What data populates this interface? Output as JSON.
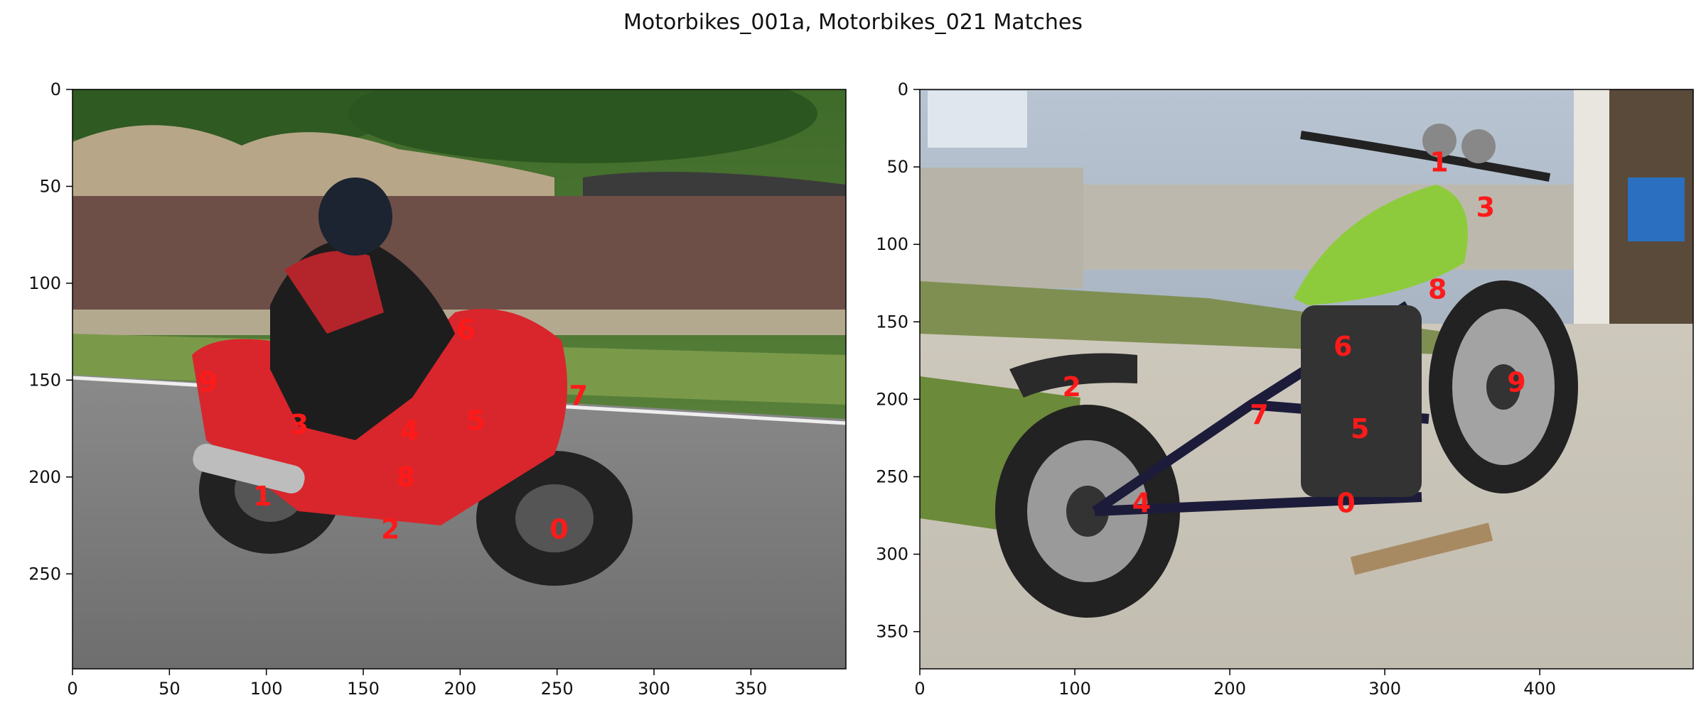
{
  "title": "Motorbikes_001a, Motorbikes_021 Matches",
  "chart_data": [
    {
      "type": "scatter",
      "image_name": "Motorbikes_001a",
      "xlim": [
        0,
        399
      ],
      "ylim": [
        299,
        0
      ],
      "xticks": [
        0,
        50,
        100,
        150,
        200,
        250,
        300,
        350
      ],
      "yticks": [
        0,
        50,
        100,
        150,
        200,
        250
      ],
      "points": [
        {
          "label": "0",
          "x": 251,
          "y": 227
        },
        {
          "label": "1",
          "x": 98,
          "y": 210
        },
        {
          "label": "2",
          "x": 164,
          "y": 227
        },
        {
          "label": "3",
          "x": 117,
          "y": 173
        },
        {
          "label": "4",
          "x": 174,
          "y": 176
        },
        {
          "label": "5",
          "x": 208,
          "y": 171
        },
        {
          "label": "6",
          "x": 203,
          "y": 124
        },
        {
          "label": "7",
          "x": 261,
          "y": 158
        },
        {
          "label": "8",
          "x": 172,
          "y": 200
        },
        {
          "label": "9",
          "x": 70,
          "y": 151
        }
      ]
    },
    {
      "type": "scatter",
      "image_name": "Motorbikes_021",
      "xlim": [
        0,
        499
      ],
      "ylim": [
        374,
        0
      ],
      "xticks": [
        0,
        100,
        200,
        300,
        400
      ],
      "yticks": [
        0,
        50,
        100,
        150,
        200,
        250,
        300,
        350
      ],
      "points": [
        {
          "label": "0",
          "x": 275,
          "y": 267
        },
        {
          "label": "1",
          "x": 335,
          "y": 47
        },
        {
          "label": "2",
          "x": 98,
          "y": 192
        },
        {
          "label": "3",
          "x": 365,
          "y": 76
        },
        {
          "label": "4",
          "x": 143,
          "y": 267
        },
        {
          "label": "5",
          "x": 284,
          "y": 219
        },
        {
          "label": "6",
          "x": 273,
          "y": 166
        },
        {
          "label": "7",
          "x": 219,
          "y": 210
        },
        {
          "label": "8",
          "x": 334,
          "y": 129
        },
        {
          "label": "9",
          "x": 385,
          "y": 189
        }
      ]
    }
  ]
}
